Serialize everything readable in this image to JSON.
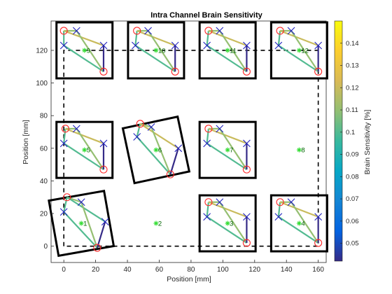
{
  "chart_data": {
    "type": "scatter",
    "title": "Intra Channel Brain Sensitivity",
    "xlabel": "Position [mm]",
    "ylabel": "Position [mm]",
    "xlim": [
      -8,
      165
    ],
    "ylim": [
      -10,
      138
    ],
    "x_ticks": [
      0,
      20,
      40,
      60,
      80,
      100,
      120,
      140,
      160
    ],
    "y_ticks": [
      0,
      20,
      40,
      60,
      80,
      100,
      120
    ],
    "grid": false,
    "outline": [
      [
        0,
        0
      ],
      [
        0,
        120
      ],
      [
        160,
        120
      ],
      [
        160,
        0
      ],
      [
        0,
        0
      ]
    ],
    "colorbar": {
      "label": "Brain Sensitivity [%]",
      "range": [
        0.042,
        0.15
      ],
      "ticks": [
        0.05,
        0.06,
        0.07,
        0.08,
        0.09,
        0.1,
        0.11,
        0.12,
        0.13,
        0.14
      ],
      "tick_labels": [
        "0.05",
        "0.06",
        "0.07",
        "0.08",
        "0.09",
        "0.1",
        "0.11",
        "0.12",
        "0.13",
        "0.14"
      ],
      "colormap": "parula"
    },
    "sensor_modules": [
      {
        "id": "1",
        "center": [
          11,
          14
        ],
        "rotation_deg": -10,
        "sources": [
          [
            2,
            30
          ],
          [
            21,
            -1
          ]
        ],
        "detectors": [
          [
            0,
            21
          ],
          [
            11,
            27
          ],
          [
            26,
            15
          ]
        ],
        "channels": [
          [
            0,
            0,
            0.1
          ],
          [
            0,
            1,
            0.11
          ],
          [
            0,
            2,
            0.1
          ],
          [
            1,
            0,
            0.1
          ],
          [
            1,
            1,
            0.11
          ],
          [
            1,
            2,
            0.04
          ]
        ]
      },
      {
        "id": "2",
        "center": [
          58,
          14
        ],
        "rotation_deg": 0,
        "sources": [],
        "detectors": [],
        "channels": []
      },
      {
        "id": "3",
        "center": [
          103,
          14
        ],
        "rotation_deg": 0,
        "sources": [
          [
            91,
            27
          ],
          [
            115,
            2
          ]
        ],
        "detectors": [
          [
            90,
            18
          ],
          [
            98,
            27
          ],
          [
            115,
            18
          ]
        ],
        "channels": [
          [
            0,
            0,
            0.1
          ],
          [
            0,
            1,
            0.11
          ],
          [
            0,
            2,
            0.12
          ],
          [
            1,
            0,
            0.1
          ],
          [
            1,
            1,
            0.11
          ],
          [
            1,
            2,
            0.04
          ]
        ]
      },
      {
        "id": "4",
        "center": [
          148,
          14
        ],
        "rotation_deg": 0,
        "sources": [
          [
            136,
            27
          ],
          [
            160,
            2
          ]
        ],
        "detectors": [
          [
            135,
            18
          ],
          [
            143,
            27
          ],
          [
            160,
            18
          ]
        ],
        "channels": [
          [
            0,
            0,
            0.1
          ],
          [
            0,
            1,
            0.11
          ],
          [
            0,
            2,
            0.12
          ],
          [
            1,
            0,
            0.1
          ],
          [
            1,
            1,
            0.11
          ],
          [
            1,
            2,
            0.04
          ]
        ]
      },
      {
        "id": "5",
        "center": [
          13,
          59
        ],
        "rotation_deg": 0,
        "sources": [
          [
            1,
            72
          ],
          [
            25,
            47
          ]
        ],
        "detectors": [
          [
            0,
            63
          ],
          [
            8,
            72
          ],
          [
            25,
            63
          ]
        ],
        "channels": [
          [
            0,
            0,
            0.1
          ],
          [
            0,
            1,
            0.11
          ],
          [
            0,
            2,
            0.12
          ],
          [
            1,
            0,
            0.1
          ],
          [
            1,
            1,
            0.11
          ],
          [
            1,
            2,
            0.04
          ]
        ]
      },
      {
        "id": "6",
        "center": [
          58,
          59
        ],
        "rotation_deg": -12,
        "sources": [
          [
            48,
            75
          ],
          [
            67,
            44
          ]
        ],
        "detectors": [
          [
            46,
            67
          ],
          [
            55,
            73
          ],
          [
            72,
            60
          ]
        ],
        "channels": [
          [
            0,
            0,
            0.1
          ],
          [
            0,
            1,
            0.11
          ],
          [
            0,
            2,
            0.12
          ],
          [
            1,
            0,
            0.1
          ],
          [
            1,
            1,
            0.11
          ],
          [
            1,
            2,
            0.04
          ]
        ]
      },
      {
        "id": "7",
        "center": [
          103,
          59
        ],
        "rotation_deg": 0,
        "sources": [
          [
            91,
            72
          ],
          [
            115,
            47
          ]
        ],
        "detectors": [
          [
            90,
            63
          ],
          [
            98,
            72
          ],
          [
            115,
            63
          ]
        ],
        "channels": [
          [
            0,
            0,
            0.1
          ],
          [
            0,
            1,
            0.11
          ],
          [
            0,
            2,
            0.12
          ],
          [
            1,
            0,
            0.1
          ],
          [
            1,
            1,
            0.11
          ],
          [
            1,
            2,
            0.04
          ]
        ]
      },
      {
        "id": "8",
        "center": [
          148,
          59
        ],
        "rotation_deg": 0,
        "sources": [],
        "detectors": [],
        "channels": []
      },
      {
        "id": "9",
        "center": [
          13,
          120
        ],
        "rotation_deg": 0,
        "sources": [
          [
            0,
            132
          ],
          [
            25,
            107
          ]
        ],
        "detectors": [
          [
            0,
            123
          ],
          [
            8,
            132
          ],
          [
            25,
            123
          ]
        ],
        "channels": [
          [
            0,
            0,
            0.1
          ],
          [
            0,
            1,
            0.11
          ],
          [
            0,
            2,
            0.12
          ],
          [
            1,
            0,
            0.1
          ],
          [
            1,
            1,
            0.11
          ],
          [
            1,
            2,
            0.04
          ]
        ]
      },
      {
        "id": "10",
        "center": [
          58,
          120
        ],
        "rotation_deg": 0,
        "sources": [
          [
            46,
            132
          ],
          [
            70,
            107
          ]
        ],
        "detectors": [
          [
            45,
            123
          ],
          [
            53,
            132
          ],
          [
            70,
            123
          ]
        ],
        "channels": [
          [
            0,
            0,
            0.1
          ],
          [
            0,
            1,
            0.11
          ],
          [
            0,
            2,
            0.12
          ],
          [
            1,
            0,
            0.1
          ],
          [
            1,
            1,
            0.11
          ],
          [
            1,
            2,
            0.04
          ]
        ]
      },
      {
        "id": "11",
        "center": [
          103,
          120
        ],
        "rotation_deg": 0,
        "sources": [
          [
            91,
            132
          ],
          [
            115,
            107
          ]
        ],
        "detectors": [
          [
            90,
            123
          ],
          [
            98,
            132
          ],
          [
            115,
            123
          ]
        ],
        "channels": [
          [
            0,
            0,
            0.1
          ],
          [
            0,
            1,
            0.11
          ],
          [
            0,
            2,
            0.12
          ],
          [
            1,
            0,
            0.1
          ],
          [
            1,
            1,
            0.11
          ],
          [
            1,
            2,
            0.04
          ]
        ]
      },
      {
        "id": "12",
        "center": [
          148,
          120
        ],
        "rotation_deg": 0,
        "sources": [
          [
            136,
            132
          ],
          [
            160,
            107
          ]
        ],
        "detectors": [
          [
            135,
            123
          ],
          [
            143,
            132
          ],
          [
            160,
            123
          ]
        ],
        "channels": [
          [
            0,
            0,
            0.1
          ],
          [
            0,
            1,
            0.11
          ],
          [
            0,
            2,
            0.12
          ],
          [
            1,
            0,
            0.1
          ],
          [
            1,
            1,
            0.11
          ],
          [
            1,
            2,
            0.04
          ]
        ]
      }
    ],
    "colors": {
      "source_marker": "#ff2a2a",
      "detector_marker": "#1f1fbf",
      "center_marker": "#33dd33",
      "module_frame": "#000000",
      "outline": "#000000"
    }
  }
}
